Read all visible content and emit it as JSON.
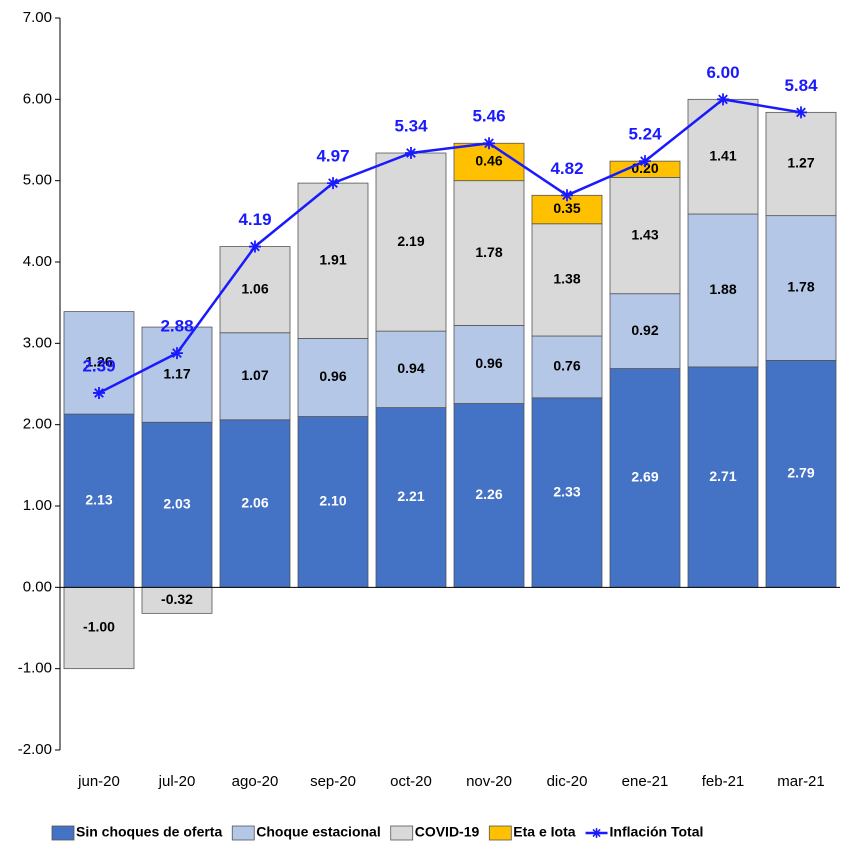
{
  "chart_data": {
    "type": "bar",
    "stacked": true,
    "categories": [
      "jun-20",
      "jul-20",
      "ago-20",
      "sep-20",
      "oct-20",
      "nov-20",
      "dic-20",
      "ene-21",
      "feb-21",
      "mar-21"
    ],
    "series": [
      {
        "name": "Sin choques de oferta",
        "color": "#4472c4",
        "label_color": "#ffffff",
        "values": [
          2.13,
          2.03,
          2.06,
          2.1,
          2.21,
          2.26,
          2.33,
          2.69,
          2.71,
          2.79
        ],
        "value_labels": [
          "2.13",
          "2.03",
          "2.06",
          "2.10",
          "2.21",
          "2.26",
          "2.33",
          "2.69",
          "2.71",
          "2.79"
        ]
      },
      {
        "name": "Choque estacional",
        "color": "#b4c7e7",
        "label_color": "#000000",
        "values": [
          1.26,
          1.17,
          1.07,
          0.96,
          0.94,
          0.96,
          0.76,
          0.92,
          1.88,
          1.78
        ],
        "value_labels": [
          "1.26",
          "1.17",
          "1.07",
          "0.96",
          "0.94",
          "0.96",
          "0.76",
          "0.92",
          "1.88",
          "1.78"
        ]
      },
      {
        "name": "COVID-19",
        "color": "#d9d9d9",
        "label_color": "#000000",
        "values": [
          -1.0,
          -0.32,
          1.06,
          1.91,
          2.19,
          1.78,
          1.38,
          1.43,
          1.41,
          1.27
        ],
        "value_labels": [
          "-1.00",
          "-0.32",
          "1.06",
          "1.91",
          "2.19",
          "1.78",
          "1.38",
          "1.43",
          "1.41",
          "1.27"
        ]
      },
      {
        "name": "Eta e Iota",
        "color": "#ffc000",
        "label_color": "#000000",
        "values": [
          null,
          null,
          null,
          null,
          null,
          0.46,
          0.35,
          0.2,
          null,
          null
        ],
        "value_labels": [
          null,
          null,
          null,
          null,
          null,
          "0.46",
          "0.35",
          "0.20",
          null,
          null
        ]
      },
      {
        "name": "Inflación Total",
        "type": "line",
        "color": "#1a1aff",
        "values": [
          2.39,
          2.88,
          4.19,
          4.97,
          5.34,
          5.46,
          4.82,
          5.24,
          6.0,
          5.84
        ],
        "value_labels": [
          "2.39",
          "2.88",
          "4.19",
          "4.97",
          "5.34",
          "5.46",
          "4.82",
          "5.24",
          "6.00",
          "5.84"
        ]
      }
    ],
    "ylim": [
      -2,
      7
    ],
    "yticks": [
      {
        "value": -2,
        "label": "-2.00"
      },
      {
        "value": -1,
        "label": "-1.00"
      },
      {
        "value": 0,
        "label": "0.00"
      },
      {
        "value": 1,
        "label": "1.00"
      },
      {
        "value": 2,
        "label": "2.00"
      },
      {
        "value": 3,
        "label": "3.00"
      },
      {
        "value": 4,
        "label": "4.00"
      },
      {
        "value": 5,
        "label": "5.00"
      },
      {
        "value": 6,
        "label": "6.00"
      },
      {
        "value": 7,
        "label": "7.00"
      }
    ],
    "grid": false,
    "legend": "bottom"
  }
}
